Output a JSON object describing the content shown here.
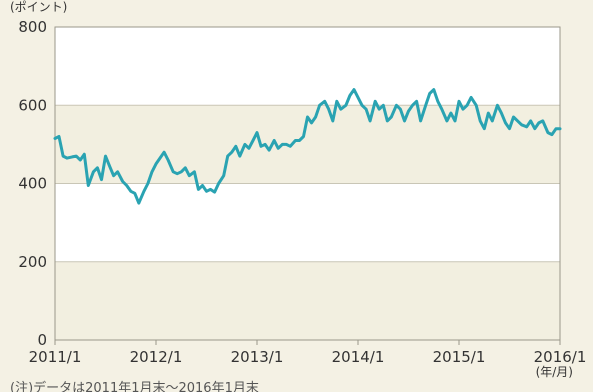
{
  "chart_data": {
    "type": "line",
    "title": "",
    "y_unit_label": "(ポイント)",
    "x_unit_label": "(年/月)",
    "note": "(注)データは2011年1月末～2016年1月末",
    "ylim": [
      0,
      800
    ],
    "yticks": [
      "0",
      "200",
      "400",
      "600",
      "800"
    ],
    "xticks": [
      "2011/1",
      "2012/1",
      "2013/1",
      "2014/1",
      "2015/1",
      "2016/1"
    ],
    "grid": true,
    "series": [
      {
        "color": "#2aa3b2",
        "x": [
          2011.0,
          2011.04,
          2011.08,
          2011.12,
          2011.17,
          2011.21,
          2011.25,
          2011.29,
          2011.33,
          2011.38,
          2011.42,
          2011.46,
          2011.5,
          2011.54,
          2011.58,
          2011.62,
          2011.67,
          2011.71,
          2011.75,
          2011.79,
          2011.83,
          2011.88,
          2011.92,
          2011.96,
          2012.0,
          2012.04,
          2012.08,
          2012.12,
          2012.17,
          2012.21,
          2012.25,
          2012.29,
          2012.33,
          2012.38,
          2012.42,
          2012.46,
          2012.5,
          2012.54,
          2012.58,
          2012.62,
          2012.67,
          2012.71,
          2012.75,
          2012.79,
          2012.83,
          2012.88,
          2012.92,
          2012.96,
          2013.0,
          2013.04,
          2013.08,
          2013.12,
          2013.17,
          2013.21,
          2013.25,
          2013.29,
          2013.33,
          2013.38,
          2013.42,
          2013.46,
          2013.5,
          2013.54,
          2013.58,
          2013.62,
          2013.67,
          2013.71,
          2013.75,
          2013.79,
          2013.83,
          2013.88,
          2013.92,
          2013.96,
          2014.0,
          2014.04,
          2014.08,
          2014.12,
          2014.17,
          2014.21,
          2014.25,
          2014.29,
          2014.33,
          2014.38,
          2014.42,
          2014.46,
          2014.5,
          2014.54,
          2014.58,
          2014.62,
          2014.67,
          2014.71,
          2014.75,
          2014.79,
          2014.83,
          2014.88,
          2014.92,
          2014.96,
          2015.0,
          2015.04,
          2015.08,
          2015.12,
          2015.17,
          2015.21,
          2015.25,
          2015.29,
          2015.33,
          2015.38,
          2015.42,
          2015.46,
          2015.5,
          2015.54,
          2015.58,
          2015.62,
          2015.67,
          2015.71,
          2015.75,
          2015.79,
          2015.83,
          2015.88,
          2015.92,
          2015.96,
          2016.0
        ],
        "values": [
          515,
          520,
          470,
          465,
          468,
          470,
          460,
          475,
          395,
          430,
          440,
          410,
          470,
          445,
          420,
          430,
          405,
          395,
          380,
          375,
          350,
          380,
          400,
          430,
          450,
          465,
          480,
          460,
          430,
          425,
          430,
          440,
          420,
          430,
          385,
          395,
          380,
          385,
          378,
          400,
          420,
          470,
          480,
          495,
          470,
          500,
          490,
          510,
          530,
          495,
          500,
          485,
          510,
          490,
          500,
          500,
          495,
          510,
          510,
          520,
          570,
          555,
          570,
          600,
          610,
          590,
          560,
          610,
          590,
          600,
          625,
          640,
          620,
          600,
          590,
          560,
          610,
          590,
          600,
          560,
          570,
          600,
          590,
          560,
          585,
          600,
          610,
          560,
          600,
          630,
          640,
          610,
          590,
          560,
          580,
          560,
          610,
          590,
          600,
          620,
          600,
          560,
          540,
          580,
          560,
          600,
          580,
          555,
          540,
          570,
          560,
          550,
          545,
          560,
          540,
          555,
          560,
          530,
          525,
          540,
          540
        ]
      }
    ]
  }
}
